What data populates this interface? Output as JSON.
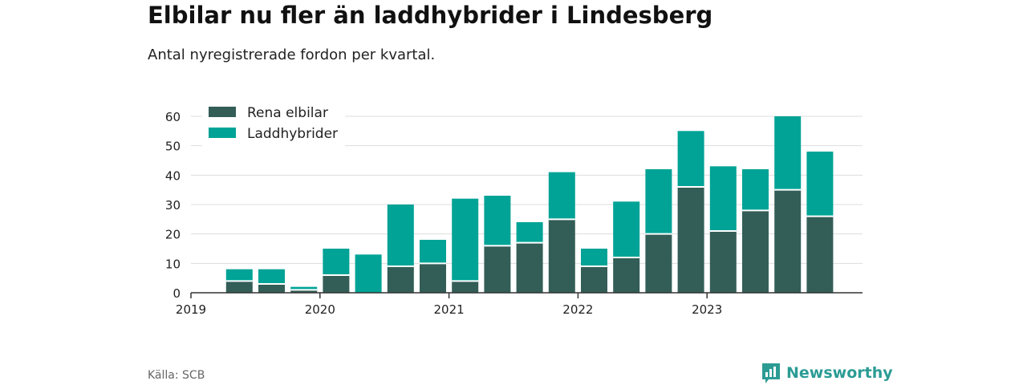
{
  "header": {
    "title": "Elbilar nu fler än laddhybrider i Lindesberg",
    "subtitle": "Antal nyregistrerade fordon per kvartal."
  },
  "footer": {
    "source": "Källa: SCB",
    "brand": "Newsworthy"
  },
  "colors": {
    "elbilar": "#335e57",
    "laddhybrider": "#00a396",
    "grid": "#dddddd",
    "axis": "#333333",
    "brand": "#2b9c94"
  },
  "chart_data": {
    "type": "bar",
    "stacked": true,
    "title": "Elbilar nu fler än laddhybrider i Lindesberg",
    "subtitle": "Antal nyregistrerade fordon per kvartal.",
    "ylim": [
      0,
      60
    ],
    "yticks": [
      0,
      10,
      20,
      30,
      40,
      50,
      60
    ],
    "year_labels": [
      "2019",
      "2020",
      "2021",
      "2022",
      "2023"
    ],
    "categories": [
      "2019 Q1",
      "2019 Q2",
      "2019 Q3",
      "2019 Q4",
      "2020 Q1",
      "2020 Q2",
      "2020 Q3",
      "2020 Q4",
      "2021 Q1",
      "2021 Q2",
      "2021 Q3",
      "2021 Q4",
      "2022 Q1",
      "2022 Q2",
      "2022 Q3",
      "2022 Q4",
      "2023 Q1",
      "2023 Q2",
      "2023 Q3",
      "2023 Q4"
    ],
    "series": [
      {
        "name": "Rena elbilar",
        "values": [
          0,
          4,
          3,
          1,
          6,
          0,
          9,
          10,
          4,
          16,
          17,
          25,
          9,
          12,
          20,
          36,
          21,
          28,
          35,
          26
        ]
      },
      {
        "name": "Laddhybrider",
        "values": [
          0,
          4,
          5,
          1,
          9,
          13,
          21,
          8,
          28,
          17,
          7,
          16,
          6,
          19,
          22,
          19,
          22,
          14,
          25,
          22
        ]
      }
    ],
    "legend_position": "top-left"
  }
}
